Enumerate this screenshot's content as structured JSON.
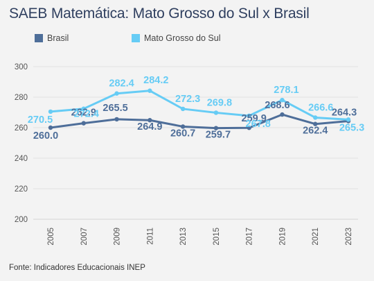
{
  "chart_data": {
    "type": "line",
    "title": "SAEB Matemática: Mato Grosso do Sul x Brasil",
    "x": [
      "2005",
      "2007",
      "2009",
      "2011",
      "2013",
      "2015",
      "2017",
      "2019",
      "2021",
      "2023"
    ],
    "series": [
      {
        "name": "Brasil",
        "color": "#4e6e99",
        "values": [
          260.0,
          262.9,
          265.5,
          264.9,
          260.7,
          259.7,
          259.9,
          268.6,
          262.4,
          264.3
        ]
      },
      {
        "name": "Mato Grosso do Sul",
        "color": "#66ccf5",
        "values": [
          270.5,
          272.4,
          282.4,
          284.2,
          272.3,
          269.8,
          267.8,
          278.1,
          266.6,
          265.3
        ]
      }
    ],
    "ylim": [
      200,
      300
    ],
    "yticks": [
      200,
      220,
      240,
      260,
      280,
      300
    ],
    "grid": true,
    "legend_position": "top-left"
  },
  "source": "Fonte: Indicadores Educacionais INEP"
}
